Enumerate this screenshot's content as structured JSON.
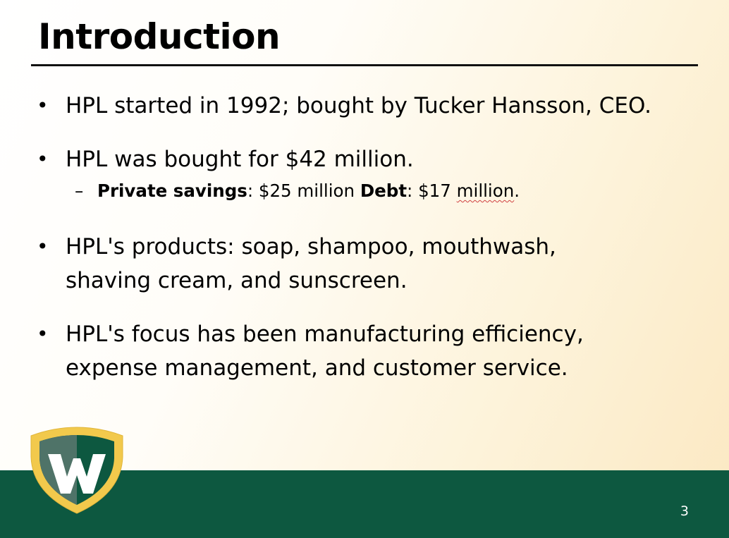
{
  "slide": {
    "title": "Introduction",
    "page_number": "3"
  },
  "bullets": [
    {
      "text": "HPL started in 1992; bought by Tucker Hansson, CEO."
    },
    {
      "text": "HPL was bought for $42 million.",
      "sub": {
        "label1": "Private savings",
        "value1": ": $25 million ",
        "label2": "Debt",
        "value2": ": $17 ",
        "value2_flagged": "million",
        "value2_end": "."
      }
    },
    {
      "line1": " HPL's products: soap, shampoo, mouthwash,",
      "line2": "shaving cream, and sunscreen."
    },
    {
      "line1": " HPL's focus has been manufacturing efficiency,",
      "line2": "expense management, and customer service."
    }
  ],
  "bullet_glyph": "•",
  "dash_glyph": "–",
  "logo": {
    "icon": "shield-w-logo",
    "colors": {
      "outer": "#f2c94c",
      "inner_dark": "#0d5840",
      "inner_light": "#5a7a70"
    }
  },
  "colors": {
    "footer": "#0d5840",
    "text": "#000000",
    "background_warm": "#fbe8c2"
  }
}
